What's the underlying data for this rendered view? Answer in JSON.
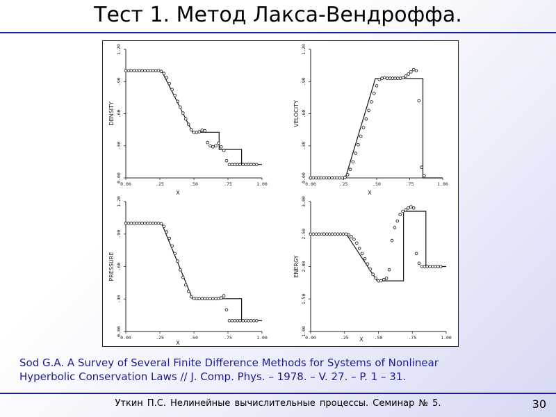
{
  "slide": {
    "title": "Тест 1. Метод Лакса-Вендроффа.",
    "citation_line1": "Sod G.A. A Survey of Several Finite Difference Methods for Systems of Nonlinear",
    "citation_line2": "Hyperbolic Conservation Laws // J. Comp. Phys. – 1978. – V. 27. – P. 1 – 31.",
    "footer": "Уткин П.С. Нелинейные вычислительные процессы. Семинар № 5.",
    "page_number": "30",
    "accent_color": "#1b1b9a",
    "citation_color": "#1b1b8c"
  },
  "chart_data": [
    {
      "type": "line",
      "ylabel": "DENSITY",
      "xlabel": "X",
      "xlim": [
        0,
        1
      ],
      "ylim": [
        0,
        1.2
      ],
      "xticks": [
        "0.00",
        ".25",
        ".50",
        ".75",
        "1.00"
      ],
      "yticks": [
        "0.00",
        ".30",
        ".60",
        ".90",
        "1.20"
      ],
      "series": [
        {
          "role": "exact",
          "style": "line",
          "x": [
            0,
            0.263,
            0.49,
            0.49,
            0.685,
            0.685,
            0.85,
            0.85,
            1.0
          ],
          "y": [
            1.0,
            1.0,
            0.426,
            0.426,
            0.426,
            0.266,
            0.266,
            0.125,
            0.125
          ]
        },
        {
          "role": "numerical",
          "style": "circles",
          "x": [
            0,
            0.02,
            0.04,
            0.06,
            0.08,
            0.1,
            0.12,
            0.14,
            0.16,
            0.18,
            0.2,
            0.22,
            0.24,
            0.26,
            0.28,
            0.3,
            0.32,
            0.34,
            0.36,
            0.38,
            0.4,
            0.42,
            0.44,
            0.46,
            0.48,
            0.5,
            0.52,
            0.54,
            0.56,
            0.58,
            0.6,
            0.62,
            0.64,
            0.66,
            0.68,
            0.7,
            0.72,
            0.74,
            0.76,
            0.78,
            0.8,
            0.82,
            0.84,
            0.86,
            0.88,
            0.9,
            0.92,
            0.94,
            0.96
          ],
          "y": [
            1.0,
            1.0,
            1.0,
            1.0,
            1.0,
            1.0,
            1.0,
            1.0,
            1.0,
            1.0,
            1.0,
            1.0,
            1.0,
            0.995,
            0.975,
            0.935,
            0.88,
            0.825,
            0.77,
            0.715,
            0.66,
            0.605,
            0.55,
            0.5,
            0.45,
            0.425,
            0.425,
            0.43,
            0.445,
            0.44,
            0.33,
            0.3,
            0.29,
            0.3,
            0.325,
            0.29,
            0.255,
            0.16,
            0.125,
            0.125,
            0.125,
            0.125,
            0.125,
            0.125,
            0.125,
            0.125,
            0.125,
            0.125,
            0.125
          ]
        }
      ]
    },
    {
      "type": "line",
      "ylabel": "VELOCITY",
      "xlabel": "X",
      "xlim": [
        0,
        1
      ],
      "ylim": [
        0,
        1.2
      ],
      "xticks": [
        "0.00",
        ".25",
        ".50",
        ".75",
        "1.00"
      ],
      "yticks": [
        "0.00",
        ".30",
        ".60",
        ".90",
        "1.20"
      ],
      "series": [
        {
          "role": "exact",
          "style": "line",
          "x": [
            0,
            0.263,
            0.49,
            0.85,
            0.85,
            1.0
          ],
          "y": [
            0.0,
            0.0,
            0.927,
            0.927,
            0.0,
            0.0
          ]
        },
        {
          "role": "numerical",
          "style": "circles",
          "x": [
            0,
            0.02,
            0.04,
            0.06,
            0.08,
            0.1,
            0.12,
            0.14,
            0.16,
            0.18,
            0.2,
            0.22,
            0.24,
            0.26,
            0.28,
            0.3,
            0.32,
            0.34,
            0.36,
            0.38,
            0.4,
            0.42,
            0.44,
            0.46,
            0.48,
            0.5,
            0.52,
            0.54,
            0.56,
            0.58,
            0.6,
            0.62,
            0.64,
            0.66,
            0.68,
            0.7,
            0.72,
            0.74,
            0.76,
            0.78,
            0.8,
            0.82,
            0.84,
            0.86
          ],
          "y": [
            0.0,
            0.0,
            0.0,
            0.0,
            0.0,
            0.0,
            0.0,
            0.0,
            0.0,
            0.0,
            0.0,
            0.0,
            0.0,
            0.005,
            0.03,
            0.08,
            0.15,
            0.23,
            0.31,
            0.39,
            0.47,
            0.55,
            0.63,
            0.71,
            0.79,
            0.86,
            0.92,
            0.93,
            0.935,
            0.93,
            0.93,
            0.93,
            0.93,
            0.93,
            0.93,
            0.935,
            0.95,
            0.97,
            0.99,
            1.01,
            1.0,
            0.72,
            0.1,
            0.02
          ]
        }
      ]
    },
    {
      "type": "line",
      "ylabel": "PRESSURE",
      "xlabel": "X",
      "xlim": [
        0,
        1
      ],
      "ylim": [
        0,
        1.2
      ],
      "xticks": [
        "0.00",
        ".25",
        ".50",
        ".75",
        "1.00"
      ],
      "yticks": [
        "0.00",
        ".30",
        ".60",
        ".90",
        "1.20"
      ],
      "series": [
        {
          "role": "exact",
          "style": "line",
          "x": [
            0,
            0.263,
            0.49,
            0.85,
            0.85,
            1.0
          ],
          "y": [
            1.0,
            1.0,
            0.303,
            0.303,
            0.1,
            0.1
          ]
        },
        {
          "role": "numerical",
          "style": "circles",
          "x": [
            0,
            0.02,
            0.04,
            0.06,
            0.08,
            0.1,
            0.12,
            0.14,
            0.16,
            0.18,
            0.2,
            0.22,
            0.24,
            0.26,
            0.28,
            0.3,
            0.32,
            0.34,
            0.36,
            0.38,
            0.4,
            0.42,
            0.44,
            0.46,
            0.48,
            0.5,
            0.52,
            0.54,
            0.56,
            0.58,
            0.6,
            0.62,
            0.64,
            0.66,
            0.68,
            0.7,
            0.72,
            0.74,
            0.76,
            0.78,
            0.8,
            0.82,
            0.84,
            0.86,
            0.88,
            0.9,
            0.92,
            0.94,
            0.96
          ],
          "y": [
            1.0,
            1.0,
            1.0,
            1.0,
            1.0,
            1.0,
            1.0,
            1.0,
            1.0,
            1.0,
            1.0,
            1.0,
            1.0,
            0.995,
            0.97,
            0.92,
            0.86,
            0.79,
            0.72,
            0.65,
            0.57,
            0.5,
            0.43,
            0.37,
            0.32,
            0.305,
            0.303,
            0.303,
            0.303,
            0.303,
            0.303,
            0.303,
            0.303,
            0.303,
            0.305,
            0.31,
            0.33,
            0.2,
            0.1,
            0.1,
            0.1,
            0.1,
            0.1,
            0.1,
            0.1,
            0.1,
            0.1,
            0.1,
            0.1
          ]
        }
      ]
    },
    {
      "type": "line",
      "ylabel": "ENERGY",
      "xlabel": "X",
      "xlim": [
        0,
        1
      ],
      "ylim": [
        1.0,
        3.0
      ],
      "xticks": [
        "0.00",
        ".25",
        ".50",
        ".75",
        "1.00"
      ],
      "yticks": [
        "1.00",
        "1.50",
        "2.00",
        "2.50",
        "3.00"
      ],
      "series": [
        {
          "role": "exact",
          "style": "line",
          "x": [
            0,
            0.263,
            0.49,
            0.685,
            0.685,
            0.85,
            0.85,
            1.0
          ],
          "y": [
            2.5,
            2.5,
            1.78,
            1.78,
            2.85,
            2.85,
            2.0,
            2.0
          ]
        },
        {
          "role": "numerical",
          "style": "circles",
          "x": [
            0,
            0.02,
            0.04,
            0.06,
            0.08,
            0.1,
            0.12,
            0.14,
            0.16,
            0.18,
            0.2,
            0.22,
            0.24,
            0.26,
            0.28,
            0.3,
            0.32,
            0.34,
            0.36,
            0.38,
            0.4,
            0.42,
            0.44,
            0.46,
            0.48,
            0.5,
            0.52,
            0.54,
            0.56,
            0.58,
            0.6,
            0.62,
            0.64,
            0.66,
            0.68,
            0.7,
            0.72,
            0.74,
            0.76,
            0.78,
            0.8,
            0.82,
            0.84,
            0.86,
            0.88,
            0.9,
            0.92,
            0.94,
            0.96
          ],
          "y": [
            2.5,
            2.5,
            2.5,
            2.5,
            2.5,
            2.5,
            2.5,
            2.5,
            2.5,
            2.5,
            2.5,
            2.5,
            2.5,
            2.5,
            2.49,
            2.46,
            2.42,
            2.36,
            2.28,
            2.2,
            2.12,
            2.04,
            1.96,
            1.88,
            1.82,
            1.78,
            1.78,
            1.8,
            1.82,
            1.95,
            2.4,
            2.6,
            2.7,
            2.8,
            2.85,
            2.87,
            2.9,
            2.92,
            2.9,
            2.2,
            2.05,
            2.0,
            2.0,
            2.0,
            2.0,
            2.0,
            2.0,
            2.0,
            2.0
          ]
        }
      ]
    }
  ]
}
